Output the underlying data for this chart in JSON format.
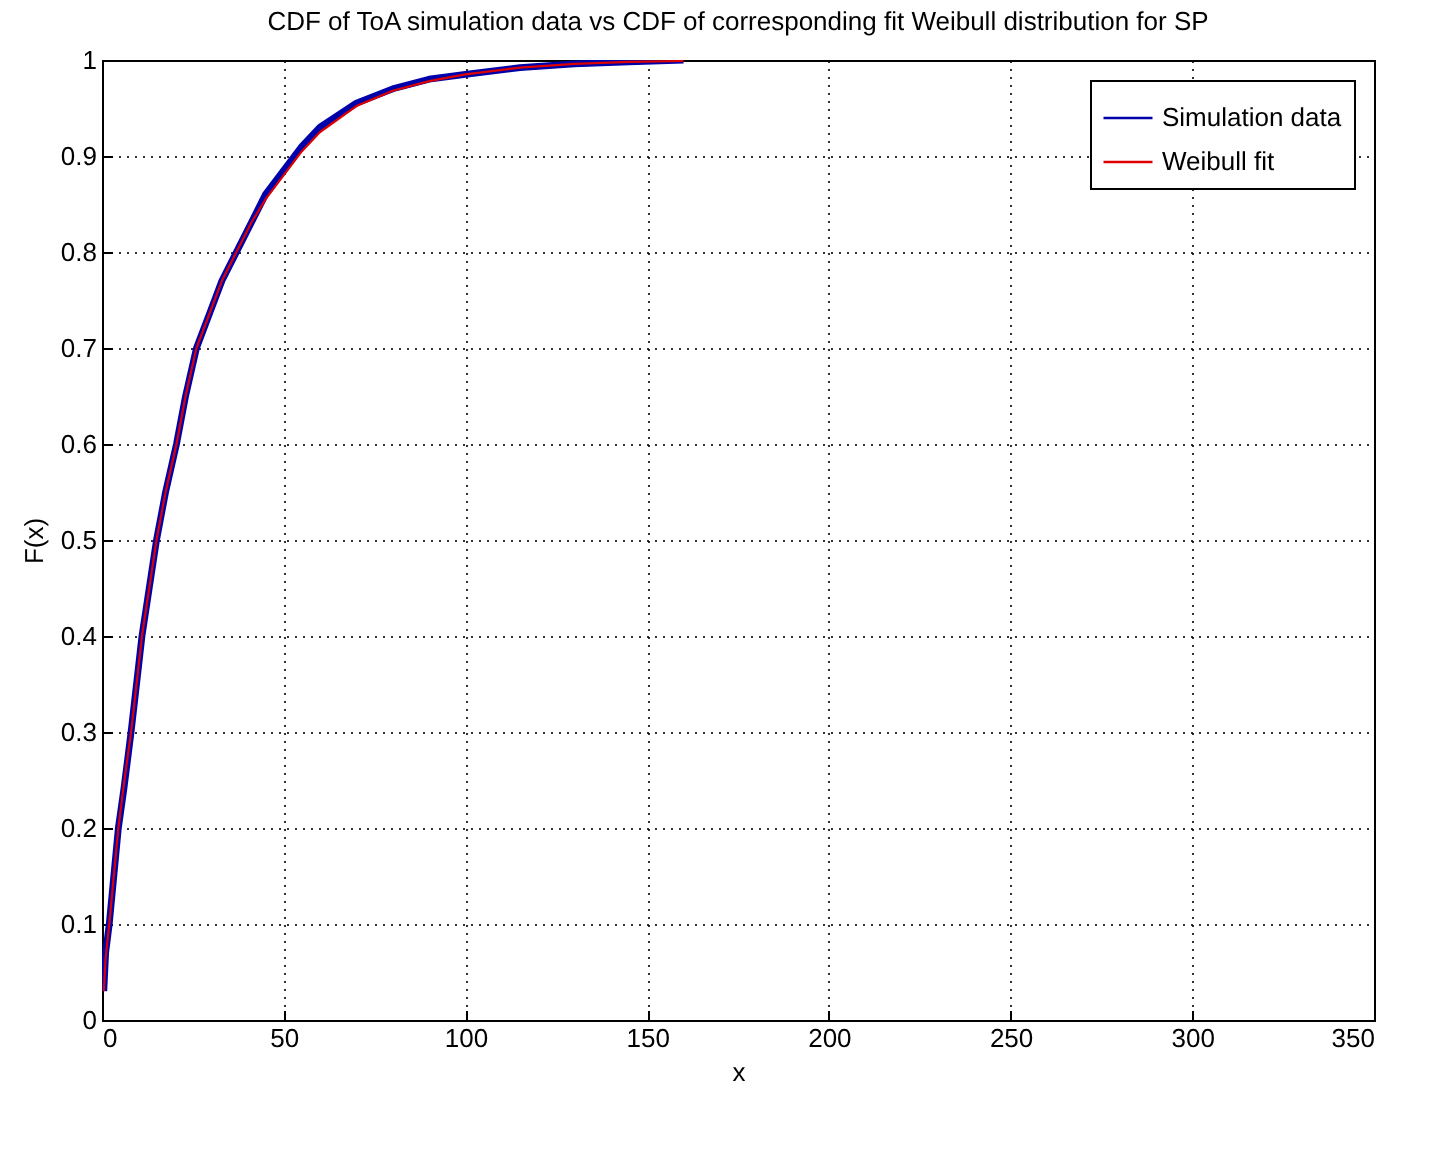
{
  "chart_data": {
    "type": "line",
    "title": "CDF of ToA simulation data vs CDF of corresponding fit Weibull distribution for SP",
    "xlabel": "x",
    "ylabel": "F(x)",
    "xlim": [
      0,
      350
    ],
    "ylim": [
      0,
      1
    ],
    "xticks": [
      0,
      50,
      100,
      150,
      200,
      250,
      300,
      350
    ],
    "yticks": [
      0,
      0.1,
      0.2,
      0.3,
      0.4,
      0.5,
      0.6,
      0.7,
      0.8,
      0.9,
      1
    ],
    "grid": true,
    "legend": "top right",
    "line_style": "solid",
    "marker": "none",
    "series": [
      {
        "name": "Simulation data",
        "color": "#0000aa",
        "x": [
          0.5,
          1,
          2,
          3,
          4.5,
          6,
          8,
          9.5,
          11,
          13,
          15,
          17.5,
          20.5,
          23,
          26,
          30,
          33,
          37,
          41,
          45,
          50,
          55,
          60,
          70,
          80,
          90,
          100,
          115,
          130,
          145,
          160
        ],
        "values": [
          0.03,
          0.07,
          0.1,
          0.14,
          0.2,
          0.24,
          0.3,
          0.35,
          0.4,
          0.45,
          0.5,
          0.55,
          0.6,
          0.65,
          0.7,
          0.74,
          0.77,
          0.8,
          0.83,
          0.86,
          0.885,
          0.91,
          0.93,
          0.955,
          0.97,
          0.98,
          0.985,
          0.992,
          0.996,
          0.998,
          1
        ]
      },
      {
        "name": "Weibull fit",
        "color": "#dd0000",
        "x": [
          0.5,
          1,
          2,
          3,
          4.5,
          6,
          8,
          9.5,
          11,
          13,
          15,
          17.5,
          20.5,
          23,
          26,
          30,
          33,
          37,
          41,
          45,
          50,
          55,
          60,
          70,
          80,
          90,
          100,
          115,
          130,
          145,
          160
        ],
        "values": [
          0.03,
          0.065,
          0.1,
          0.14,
          0.2,
          0.245,
          0.3,
          0.35,
          0.4,
          0.45,
          0.5,
          0.55,
          0.6,
          0.65,
          0.7,
          0.74,
          0.77,
          0.8,
          0.83,
          0.855,
          0.88,
          0.905,
          0.925,
          0.952,
          0.968,
          0.978,
          0.985,
          0.992,
          0.996,
          0.998,
          0.999
        ]
      }
    ]
  }
}
